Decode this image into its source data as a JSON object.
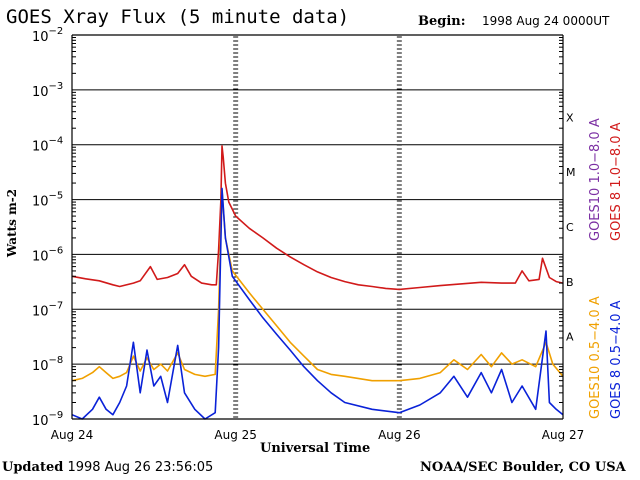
{
  "header": {
    "title": "GOES Xray Flux (5 minute data)",
    "begin_label": "Begin:",
    "begin_value": "1998 Aug 24 0000UT"
  },
  "footer": {
    "updated_label": "Updated",
    "updated_value": "1998 Aug 26 23:56:05",
    "credit": "NOAA/SEC Boulder, CO USA"
  },
  "colors": {
    "goes10_long": "#7b2fa3",
    "goes8_long": "#d11a1a",
    "goes10_short": "#f0a000",
    "goes8_short": "#0a22d8"
  },
  "chart_data": {
    "type": "line",
    "ylabel": "Watts m-2",
    "xlabel": "Universal Time",
    "yscale": "log",
    "ylim": [
      1e-09,
      0.01
    ],
    "y_tick_labels": [
      {
        "base": "10",
        "exp": "−2",
        "value": 0.01
      },
      {
        "base": "10",
        "exp": "−3",
        "value": 0.001
      },
      {
        "base": "10",
        "exp": "−4",
        "value": 0.0001
      },
      {
        "base": "10",
        "exp": "−5",
        "value": 1e-05
      },
      {
        "base": "10",
        "exp": "−6",
        "value": 1e-06
      },
      {
        "base": "10",
        "exp": "−7",
        "value": 1e-07
      },
      {
        "base": "10",
        "exp": "−8",
        "value": 1e-08
      },
      {
        "base": "10",
        "exp": "−9",
        "value": 1e-09
      }
    ],
    "xlim": [
      "1998-08-24T00:00Z",
      "1998-08-27T00:00Z"
    ],
    "x_tick_labels": [
      {
        "label": "Aug 24",
        "t": "1998-08-24T00:00Z"
      },
      {
        "label": "Aug 25",
        "t": "1998-08-25T00:00Z"
      },
      {
        "label": "Aug 26",
        "t": "1998-08-26T00:00Z"
      },
      {
        "label": "Aug 27",
        "t": "1998-08-27T00:00Z"
      }
    ],
    "flare_classes": [
      {
        "label": "X",
        "value": 0.0001
      },
      {
        "label": "M",
        "value": 1e-05
      },
      {
        "label": "C",
        "value": 1e-06
      },
      {
        "label": "B",
        "value": 1e-07
      },
      {
        "label": "A",
        "value": 1e-08
      }
    ],
    "grid": "horizontal",
    "legend": [
      {
        "label": "GOES10 1.0−8.0 A",
        "color": "#7b2fa3"
      },
      {
        "label": "GOES 8 1.0−8.0 A",
        "color": "#d11a1a"
      },
      {
        "label": "GOES10 0.5−4.0 A",
        "color": "#f0a000"
      },
      {
        "label": "GOES 8 0.5−4.0 A",
        "color": "#0a22d8"
      }
    ],
    "legend_position": "right, vertical",
    "series": [
      {
        "name": "GOES 8 1.0−8.0 A",
        "color": "#d11a1a",
        "points": [
          [
            "1998-08-24T00:00Z",
            4e-07
          ],
          [
            "1998-08-24T02:00Z",
            3.6e-07
          ],
          [
            "1998-08-24T04:00Z",
            3.3e-07
          ],
          [
            "1998-08-24T06:00Z",
            2.8e-07
          ],
          [
            "1998-08-24T07:00Z",
            2.6e-07
          ],
          [
            "1998-08-24T09:00Z",
            3e-07
          ],
          [
            "1998-08-24T10:00Z",
            3.3e-07
          ],
          [
            "1998-08-24T11:30Z",
            6e-07
          ],
          [
            "1998-08-24T12:30Z",
            3.5e-07
          ],
          [
            "1998-08-24T14:00Z",
            3.8e-07
          ],
          [
            "1998-08-24T15:30Z",
            4.5e-07
          ],
          [
            "1998-08-24T16:30Z",
            6.5e-07
          ],
          [
            "1998-08-24T17:30Z",
            4e-07
          ],
          [
            "1998-08-24T19:00Z",
            3e-07
          ],
          [
            "1998-08-24T20:30Z",
            2.8e-07
          ],
          [
            "1998-08-24T21:10Z",
            2.8e-07
          ],
          [
            "1998-08-24T21:30Z",
            1.2e-06
          ],
          [
            "1998-08-24T21:50Z",
            1e-05
          ],
          [
            "1998-08-24T22:00Z",
            9.5e-05
          ],
          [
            "1998-08-24T22:10Z",
            6e-05
          ],
          [
            "1998-08-24T22:30Z",
            2e-05
          ],
          [
            "1998-08-24T23:00Z",
            9e-06
          ],
          [
            "1998-08-25T00:00Z",
            5e-06
          ],
          [
            "1998-08-25T02:00Z",
            3e-06
          ],
          [
            "1998-08-25T04:00Z",
            2e-06
          ],
          [
            "1998-08-25T06:00Z",
            1.3e-06
          ],
          [
            "1998-08-25T08:00Z",
            9e-07
          ],
          [
            "1998-08-25T10:00Z",
            6.5e-07
          ],
          [
            "1998-08-25T12:00Z",
            4.8e-07
          ],
          [
            "1998-08-25T14:00Z",
            3.8e-07
          ],
          [
            "1998-08-25T16:00Z",
            3.2e-07
          ],
          [
            "1998-08-25T18:00Z",
            2.8e-07
          ],
          [
            "1998-08-25T20:00Z",
            2.6e-07
          ],
          [
            "1998-08-25T22:00Z",
            2.4e-07
          ],
          [
            "1998-08-26T00:00Z",
            2.3e-07
          ],
          [
            "1998-08-26T03:00Z",
            2.5e-07
          ],
          [
            "1998-08-26T06:00Z",
            2.7e-07
          ],
          [
            "1998-08-26T09:00Z",
            2.9e-07
          ],
          [
            "1998-08-26T12:00Z",
            3.1e-07
          ],
          [
            "1998-08-26T15:00Z",
            3e-07
          ],
          [
            "1998-08-26T17:00Z",
            3e-07
          ],
          [
            "1998-08-26T18:00Z",
            5e-07
          ],
          [
            "1998-08-26T19:00Z",
            3.3e-07
          ],
          [
            "1998-08-26T20:30Z",
            3.5e-07
          ],
          [
            "1998-08-26T21:00Z",
            8.5e-07
          ],
          [
            "1998-08-26T22:00Z",
            3.8e-07
          ],
          [
            "1998-08-26T23:00Z",
            3.2e-07
          ],
          [
            "1998-08-27T00:00Z",
            3e-07
          ]
        ]
      },
      {
        "name": "GOES10 0.5−4.0 A",
        "color": "#f0a000",
        "points": [
          [
            "1998-08-24T00:00Z",
            5e-09
          ],
          [
            "1998-08-24T01:30Z",
            5.5e-09
          ],
          [
            "1998-08-24T03:00Z",
            7e-09
          ],
          [
            "1998-08-24T04:00Z",
            9e-09
          ],
          [
            "1998-08-24T05:00Z",
            7e-09
          ],
          [
            "1998-08-24T06:00Z",
            5.5e-09
          ],
          [
            "1998-08-24T07:00Z",
            6e-09
          ],
          [
            "1998-08-24T08:00Z",
            7e-09
          ],
          [
            "1998-08-24T09:00Z",
            1.4e-08
          ],
          [
            "1998-08-24T10:00Z",
            7.5e-09
          ],
          [
            "1998-08-24T11:00Z",
            1.3e-08
          ],
          [
            "1998-08-24T12:00Z",
            8e-09
          ],
          [
            "1998-08-24T13:00Z",
            1e-08
          ],
          [
            "1998-08-24T14:00Z",
            7.5e-09
          ],
          [
            "1998-08-24T15:30Z",
            1.6e-08
          ],
          [
            "1998-08-24T16:30Z",
            8e-09
          ],
          [
            "1998-08-24T18:00Z",
            6.5e-09
          ],
          [
            "1998-08-24T19:30Z",
            6e-09
          ],
          [
            "1998-08-24T21:00Z",
            6.5e-09
          ],
          [
            "1998-08-24T21:30Z",
            1e-07
          ],
          [
            "1998-08-24T22:00Z",
            1.5e-05
          ],
          [
            "1998-08-24T22:30Z",
            2e-06
          ],
          [
            "1998-08-24T23:30Z",
            5e-07
          ],
          [
            "1998-08-25T02:00Z",
            2e-07
          ],
          [
            "1998-08-25T04:00Z",
            1e-07
          ],
          [
            "1998-08-25T06:00Z",
            5e-08
          ],
          [
            "1998-08-25T08:00Z",
            2.5e-08
          ],
          [
            "1998-08-25T10:00Z",
            1.4e-08
          ],
          [
            "1998-08-25T12:00Z",
            8e-09
          ],
          [
            "1998-08-25T14:00Z",
            6.5e-09
          ],
          [
            "1998-08-25T16:00Z",
            6e-09
          ],
          [
            "1998-08-25T20:00Z",
            5e-09
          ],
          [
            "1998-08-26T00:00Z",
            5e-09
          ],
          [
            "1998-08-26T03:00Z",
            5.5e-09
          ],
          [
            "1998-08-26T06:00Z",
            7e-09
          ],
          [
            "1998-08-26T08:00Z",
            1.2e-08
          ],
          [
            "1998-08-26T10:00Z",
            8e-09
          ],
          [
            "1998-08-26T12:00Z",
            1.5e-08
          ],
          [
            "1998-08-26T13:30Z",
            9e-09
          ],
          [
            "1998-08-26T15:00Z",
            1.6e-08
          ],
          [
            "1998-08-26T16:30Z",
            1e-08
          ],
          [
            "1998-08-26T18:00Z",
            1.2e-08
          ],
          [
            "1998-08-26T20:00Z",
            9e-09
          ],
          [
            "1998-08-26T21:30Z",
            2.5e-08
          ],
          [
            "1998-08-26T22:30Z",
            1e-08
          ],
          [
            "1998-08-27T00:00Z",
            6e-09
          ]
        ]
      },
      {
        "name": "GOES 8 0.5−4.0 A",
        "color": "#0a22d8",
        "points": [
          [
            "1998-08-24T00:00Z",
            1.2e-09
          ],
          [
            "1998-08-24T01:30Z",
            1e-09
          ],
          [
            "1998-08-24T03:00Z",
            1.5e-09
          ],
          [
            "1998-08-24T04:00Z",
            2.5e-09
          ],
          [
            "1998-08-24T05:00Z",
            1.5e-09
          ],
          [
            "1998-08-24T06:00Z",
            1.2e-09
          ],
          [
            "1998-08-24T07:00Z",
            2e-09
          ],
          [
            "1998-08-24T08:00Z",
            4e-09
          ],
          [
            "1998-08-24T09:00Z",
            2.5e-08
          ],
          [
            "1998-08-24T10:00Z",
            3e-09
          ],
          [
            "1998-08-24T11:00Z",
            1.8e-08
          ],
          [
            "1998-08-24T12:00Z",
            4e-09
          ],
          [
            "1998-08-24T13:00Z",
            6e-09
          ],
          [
            "1998-08-24T14:00Z",
            2e-09
          ],
          [
            "1998-08-24T15:30Z",
            2.2e-08
          ],
          [
            "1998-08-24T16:30Z",
            3e-09
          ],
          [
            "1998-08-24T18:00Z",
            1.5e-09
          ],
          [
            "1998-08-24T19:30Z",
            1e-09
          ],
          [
            "1998-08-24T21:00Z",
            1.3e-09
          ],
          [
            "1998-08-24T21:30Z",
            2e-08
          ],
          [
            "1998-08-24T22:00Z",
            1.6e-05
          ],
          [
            "1998-08-24T22:30Z",
            2e-06
          ],
          [
            "1998-08-24T23:30Z",
            4e-07
          ],
          [
            "1998-08-25T02:00Z",
            1.5e-07
          ],
          [
            "1998-08-25T04:00Z",
            7e-08
          ],
          [
            "1998-08-25T06:00Z",
            3.5e-08
          ],
          [
            "1998-08-25T08:00Z",
            1.8e-08
          ],
          [
            "1998-08-25T10:00Z",
            9e-09
          ],
          [
            "1998-08-25T12:00Z",
            5e-09
          ],
          [
            "1998-08-25T14:00Z",
            3e-09
          ],
          [
            "1998-08-25T16:00Z",
            2e-09
          ],
          [
            "1998-08-25T20:00Z",
            1.5e-09
          ],
          [
            "1998-08-26T00:00Z",
            1.3e-09
          ],
          [
            "1998-08-26T03:00Z",
            1.8e-09
          ],
          [
            "1998-08-26T06:00Z",
            3e-09
          ],
          [
            "1998-08-26T08:00Z",
            6e-09
          ],
          [
            "1998-08-26T10:00Z",
            2.5e-09
          ],
          [
            "1998-08-26T12:00Z",
            7e-09
          ],
          [
            "1998-08-26T13:30Z",
            3e-09
          ],
          [
            "1998-08-26T15:00Z",
            8e-09
          ],
          [
            "1998-08-26T16:30Z",
            2e-09
          ],
          [
            "1998-08-26T18:00Z",
            4e-09
          ],
          [
            "1998-08-26T20:00Z",
            1.5e-09
          ],
          [
            "1998-08-26T21:30Z",
            4e-08
          ],
          [
            "1998-08-26T22:00Z",
            2e-09
          ],
          [
            "1998-08-26T23:00Z",
            1.5e-09
          ],
          [
            "1998-08-27T00:00Z",
            1.2e-09
          ]
        ]
      }
    ]
  }
}
